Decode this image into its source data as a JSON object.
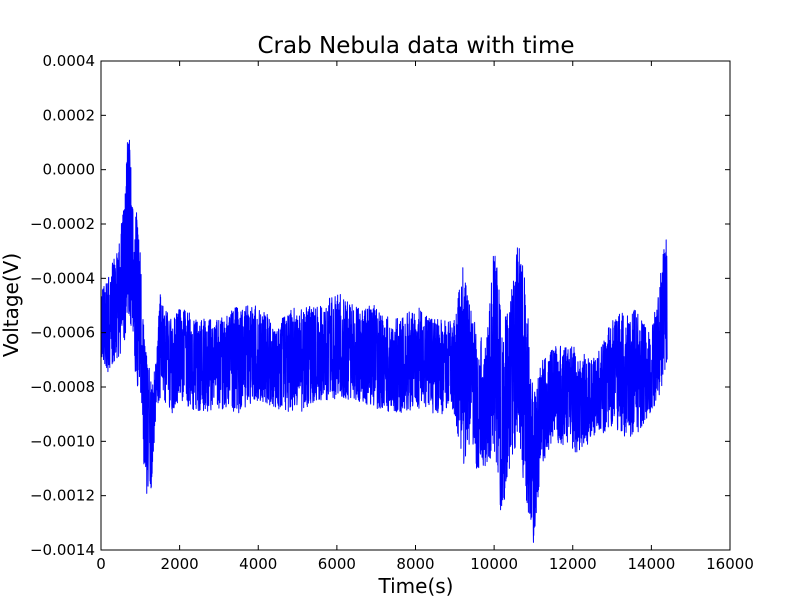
{
  "chart_data": {
    "type": "line",
    "title": "Crab Nebula data with time",
    "xlabel": "Time(s)",
    "ylabel": "Voltage(V)",
    "xlim": [
      0,
      16000
    ],
    "ylim": [
      -0.0014,
      0.0004
    ],
    "xticks": [
      0,
      2000,
      4000,
      6000,
      8000,
      10000,
      12000,
      14000,
      16000
    ],
    "xtick_labels": [
      "0",
      "2000",
      "4000",
      "6000",
      "8000",
      "10000",
      "12000",
      "14000",
      "16000"
    ],
    "yticks": [
      0.0004,
      0.0002,
      0.0,
      -0.0002,
      -0.0004,
      -0.0006,
      -0.0008,
      -0.001,
      -0.0012,
      -0.0014
    ],
    "ytick_labels": [
      "0.0004",
      "0.0002",
      "0.0000",
      "−0.0002",
      "−0.0004",
      "−0.0006",
      "−0.0008",
      "−0.0010",
      "−0.0012",
      "−0.0014"
    ],
    "grid": false,
    "color": "#0000ff",
    "series": [
      {
        "envelope": {
          "x": [
            0,
            200,
            400,
            600,
            700,
            800,
            900,
            1000,
            1100,
            1200,
            1300,
            1400,
            1500,
            1600,
            1800,
            2000,
            2500,
            3000,
            3500,
            4000,
            4500,
            5000,
            5500,
            6000,
            6500,
            7000,
            7500,
            8000,
            8500,
            9000,
            9200,
            9400,
            9600,
            9800,
            10000,
            10200,
            10400,
            10600,
            10800,
            11000,
            11200,
            11500,
            12000,
            12500,
            13000,
            13500,
            14000,
            14200,
            14400
          ],
          "upper": [
            -0.00045,
            -0.00038,
            -0.0003,
            -0.00012,
            0.0002,
            -0.0001,
            -0.00012,
            -0.0003,
            -0.0006,
            -0.0007,
            -0.0008,
            -0.0007,
            -0.00045,
            -0.0005,
            -0.00055,
            -0.0005,
            -0.00055,
            -0.00055,
            -0.0005,
            -0.0005,
            -0.00055,
            -0.0005,
            -0.0005,
            -0.00045,
            -0.0005,
            -0.0005,
            -0.00055,
            -0.0005,
            -0.00055,
            -0.00055,
            -0.00035,
            -0.0005,
            -0.0006,
            -0.00065,
            -0.00025,
            -0.00055,
            -0.0005,
            -0.00025,
            -0.0004,
            -0.0008,
            -0.0007,
            -0.00065,
            -0.00065,
            -0.0007,
            -0.00055,
            -0.0005,
            -0.0006,
            -0.0004,
            -0.00022
          ],
          "lower": [
            -0.0007,
            -0.00075,
            -0.0007,
            -0.00065,
            -0.00055,
            -0.0006,
            -0.0008,
            -0.0009,
            -0.0011,
            -0.00125,
            -0.00115,
            -0.0009,
            -0.00085,
            -0.00085,
            -0.0009,
            -0.00085,
            -0.0009,
            -0.00088,
            -0.0009,
            -0.00085,
            -0.00088,
            -0.0009,
            -0.00085,
            -0.00085,
            -0.00085,
            -0.00088,
            -0.0009,
            -0.00088,
            -0.0009,
            -0.0009,
            -0.0011,
            -0.001,
            -0.00115,
            -0.0011,
            -0.00105,
            -0.0013,
            -0.0011,
            -0.001,
            -0.0012,
            -0.00138,
            -0.0011,
            -0.001,
            -0.00105,
            -0.001,
            -0.00095,
            -0.001,
            -0.0009,
            -0.00085,
            -0.0007
          ]
        }
      }
    ]
  }
}
